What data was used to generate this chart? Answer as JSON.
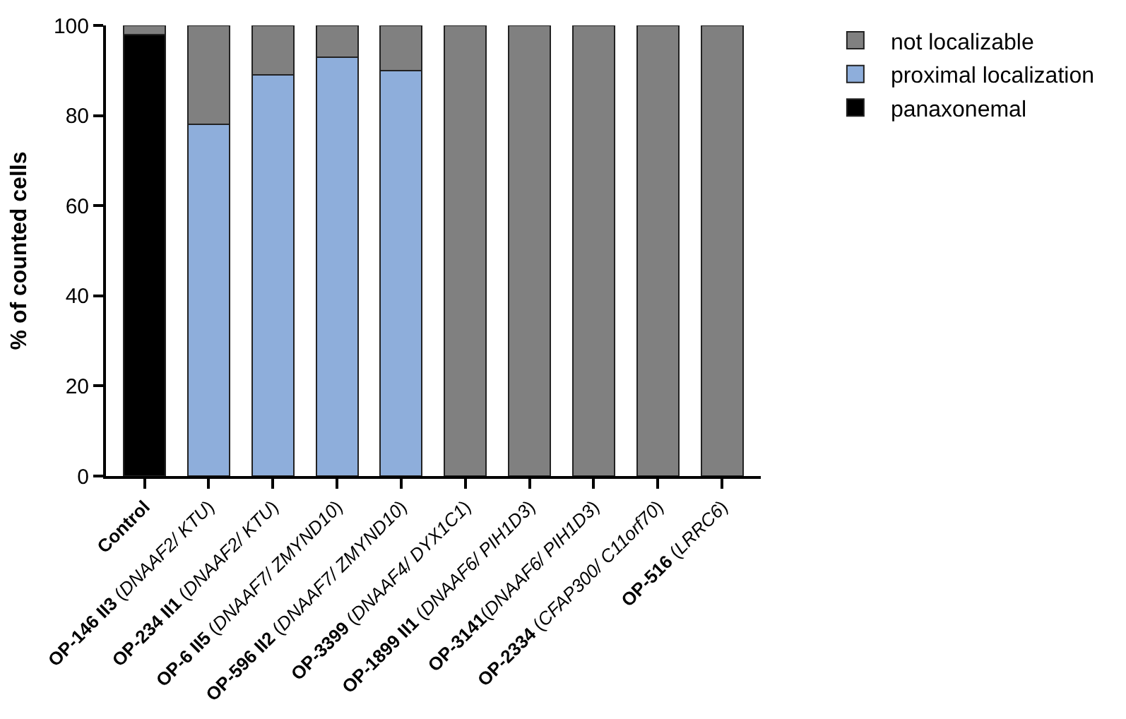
{
  "chart_data": {
    "type": "bar",
    "stacked": true,
    "ylabel": "% of counted cells",
    "categories": [
      "Control",
      "OP-146 II3 (DNAAF2/ KTU)",
      "OP-234 II1 (DNAAF2/ KTU)",
      "OP-6 II5 (DNAAF7/ ZMYND10)",
      "OP-596 II2 (DNAAF7/ ZMYND10)",
      "OP-3399 (DNAAF4/ DYX1C1)",
      "OP-1899 II1 (DNAAF6/ PIH1D3)",
      "OP-3141(DNAAF6/ PIH1D3)",
      "OP-2334 (CFAP300/ C11orf70)",
      "OP-516 (LRRC6)"
    ],
    "series": [
      {
        "name": "panaxonemal",
        "color": "#000000",
        "values": [
          98,
          null,
          null,
          null,
          null,
          null,
          null,
          null,
          null,
          null
        ]
      },
      {
        "name": "proximal localization",
        "color": "#8eaedb",
        "values": [
          null,
          78,
          89,
          93,
          90,
          null,
          null,
          null,
          null,
          null
        ]
      },
      {
        "name": "not localizable",
        "color": "#808080",
        "values": [
          2,
          22,
          11,
          7,
          10,
          100,
          100,
          100,
          100,
          100
        ]
      }
    ],
    "ylim": [
      0,
      100
    ],
    "yticks": [
      0,
      20,
      40,
      60,
      80,
      100
    ],
    "legend": "top right"
  }
}
